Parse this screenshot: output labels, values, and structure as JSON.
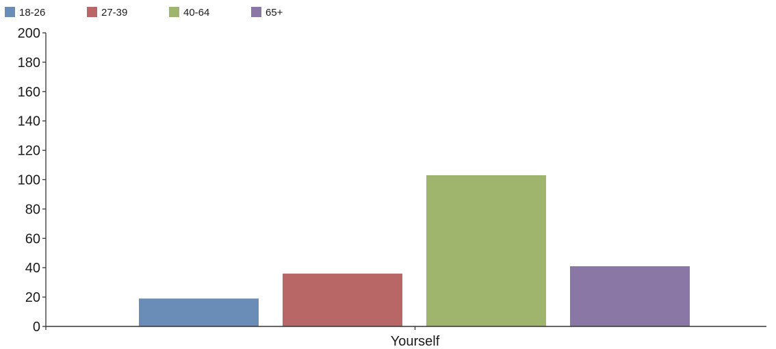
{
  "chart_data": {
    "type": "bar",
    "categories": [
      "Yourself"
    ],
    "series": [
      {
        "name": "18-26",
        "values": [
          19
        ],
        "color": "#6a8db8"
      },
      {
        "name": "27-39",
        "values": [
          36
        ],
        "color": "#b86666"
      },
      {
        "name": "40-64",
        "values": [
          103
        ],
        "color": "#9fb56d"
      },
      {
        "name": "65+",
        "values": [
          41
        ],
        "color": "#8b77a6"
      }
    ],
    "ylim": [
      0,
      200
    ],
    "yticks": [
      "0",
      "20",
      "40",
      "60",
      "80",
      "100",
      "120",
      "140",
      "160",
      "180",
      "200"
    ],
    "legend_position": "top-left",
    "grid": false
  }
}
